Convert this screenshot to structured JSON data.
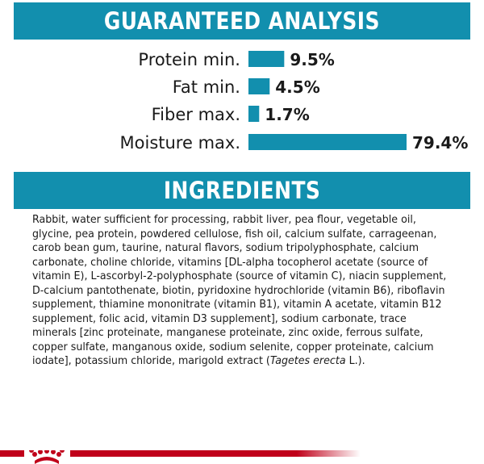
{
  "analysis": {
    "title": "GUARANTEED ANALYSIS"
  },
  "chart_data": {
    "type": "bar",
    "orientation": "horizontal",
    "title": "GUARANTEED ANALYSIS",
    "categories": [
      "Protein min.",
      "Fat min.",
      "Fiber max.",
      "Moisture max."
    ],
    "values": [
      9.5,
      4.5,
      1.7,
      79.4
    ],
    "value_labels": [
      "9.5%",
      "4.5%",
      "1.7%",
      "79.4%"
    ],
    "unit": "%",
    "bar_color": "#128fae",
    "grid": false
  },
  "ingredients": {
    "title": "INGREDIENTS",
    "lines": [
      "Rabbit, water sufficient for processing, rabbit liver, pea flour, vegetable oil,",
      "glycine, pea protein, powdered cellulose, fish oil, calcium sulfate, carrageenan,",
      "carob bean gum, taurine, natural flavors, sodium tripolyphosphate, calcium",
      "carbonate, choline chloride, vitamins [DL-alpha tocopherol acetate (source of",
      "vitamin E), L-ascorbyl-2-polyphosphate (source of vitamin C), niacin supplement,",
      "D-calcium pantothenate, biotin, pyridoxine hydrochloride (vitamin B6), riboflavin",
      "supplement, thiamine mononitrate (vitamin B1), vitamin A acetate, vitamin B12",
      "supplement, folic acid, vitamin D3 supplement], sodium carbonate, trace",
      "minerals [zinc proteinate, manganese proteinate, zinc oxide, ferrous sulfate,",
      "copper sulfate, manganous oxide, sodium selenite, copper proteinate, calcium"
    ],
    "last_line_before": "iodate], potassium chloride, marigold extract (",
    "last_line_italic": "Tagetes erecta",
    "last_line_after": " L.)."
  },
  "footer": {
    "brand_color": "#c0001a",
    "logo": "crown-logo"
  }
}
